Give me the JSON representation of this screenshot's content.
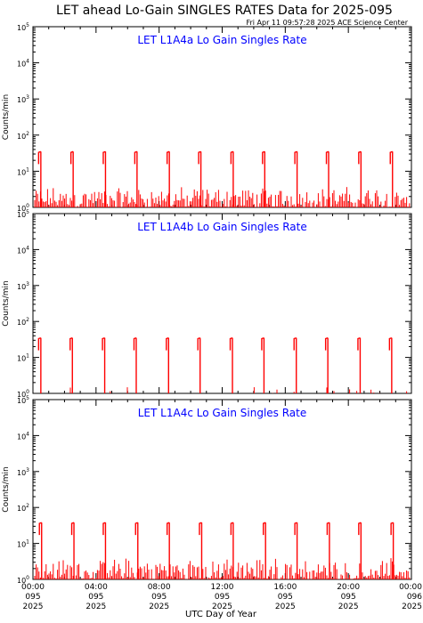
{
  "title": "LET ahead Lo-Gain SINGLES RATES Data for 2025-095",
  "timestamp": "Fri Apr 11 09:57:28 2025 ACE Science Center",
  "ylabel": "Counts/min",
  "xlabel": "UTC Day of Year",
  "colors": {
    "data": "#ff0000",
    "panel_title": "#0000ff",
    "axes": "#000000"
  },
  "x_ticks": [
    {
      "hour": 0,
      "time": "00:00",
      "day": "095",
      "year": "2025"
    },
    {
      "hour": 4,
      "time": "04:00",
      "day": "095",
      "year": "2025"
    },
    {
      "hour": 8,
      "time": "08:00",
      "day": "095",
      "year": "2025"
    },
    {
      "hour": 12,
      "time": "12:00",
      "day": "095",
      "year": "2025"
    },
    {
      "hour": 16,
      "time": "16:00",
      "day": "095",
      "year": "2025"
    },
    {
      "hour": 20,
      "time": "20:00",
      "day": "095",
      "year": "2025"
    },
    {
      "hour": 24,
      "time": "00:00",
      "day": "096",
      "year": "2025"
    }
  ],
  "y_ticks": [
    {
      "exp": 0,
      "base": "10",
      "sup": "0"
    },
    {
      "exp": 1,
      "base": "10",
      "sup": "1"
    },
    {
      "exp": 2,
      "base": "10",
      "sup": "2"
    },
    {
      "exp": 3,
      "base": "10",
      "sup": "3"
    },
    {
      "exp": 4,
      "base": "10",
      "sup": "4"
    },
    {
      "exp": 5,
      "base": "10",
      "sup": "5"
    }
  ],
  "chart_data": [
    {
      "type": "line",
      "title": "LET L1A4a Lo Gain Singles Rate",
      "xlabel": "",
      "ylabel": "Counts/min",
      "x_unit": "UTC hour of day 095",
      "xlim": [
        0,
        24
      ],
      "ylim": [
        1,
        100000
      ],
      "y_scale": "log",
      "baseline_range": [
        1,
        4
      ],
      "spikes": [
        {
          "hour": 0.5,
          "peak": 35
        },
        {
          "hour": 2.55,
          "peak": 35
        },
        {
          "hour": 4.6,
          "peak": 35
        },
        {
          "hour": 6.6,
          "peak": 35
        },
        {
          "hour": 8.65,
          "peak": 35
        },
        {
          "hour": 10.65,
          "peak": 35
        },
        {
          "hour": 12.7,
          "peak": 35
        },
        {
          "hour": 14.7,
          "peak": 35
        },
        {
          "hour": 16.75,
          "peak": 35
        },
        {
          "hour": 18.75,
          "peak": 35
        },
        {
          "hour": 20.8,
          "peak": 35
        },
        {
          "hour": 22.8,
          "peak": 35
        }
      ]
    },
    {
      "type": "line",
      "title": "LET L1A4b Lo Gain Singles Rate",
      "xlabel": "",
      "ylabel": "Counts/min",
      "x_unit": "UTC hour of day 095",
      "xlim": [
        0,
        24
      ],
      "ylim": [
        1,
        100000
      ],
      "y_scale": "log",
      "baseline_range": [
        1,
        1.5
      ],
      "spikes": [
        {
          "hour": 0.5,
          "peak": 35
        },
        {
          "hour": 2.5,
          "peak": 35
        },
        {
          "hour": 4.55,
          "peak": 35
        },
        {
          "hour": 6.55,
          "peak": 35
        },
        {
          "hour": 8.6,
          "peak": 35
        },
        {
          "hour": 10.6,
          "peak": 35
        },
        {
          "hour": 12.65,
          "peak": 35
        },
        {
          "hour": 14.65,
          "peak": 35
        },
        {
          "hour": 16.7,
          "peak": 35
        },
        {
          "hour": 18.7,
          "peak": 35
        },
        {
          "hour": 20.75,
          "peak": 35
        },
        {
          "hour": 22.75,
          "peak": 35
        }
      ]
    },
    {
      "type": "line",
      "title": "LET L1A4c Lo Gain Singles Rate",
      "xlabel": "UTC Day of Year",
      "ylabel": "Counts/min",
      "x_unit": "UTC hour of day 095",
      "xlim": [
        0,
        24
      ],
      "ylim": [
        1,
        100000
      ],
      "y_scale": "log",
      "baseline_range": [
        1,
        4
      ],
      "spikes": [
        {
          "hour": 0.55,
          "peak": 38
        },
        {
          "hour": 2.6,
          "peak": 38
        },
        {
          "hour": 4.6,
          "peak": 38
        },
        {
          "hour": 6.65,
          "peak": 38
        },
        {
          "hour": 8.65,
          "peak": 38
        },
        {
          "hour": 10.7,
          "peak": 38
        },
        {
          "hour": 12.7,
          "peak": 38
        },
        {
          "hour": 14.75,
          "peak": 38
        },
        {
          "hour": 16.75,
          "peak": 38
        },
        {
          "hour": 18.8,
          "peak": 38
        },
        {
          "hour": 20.8,
          "peak": 38
        },
        {
          "hour": 22.85,
          "peak": 38
        }
      ]
    }
  ]
}
